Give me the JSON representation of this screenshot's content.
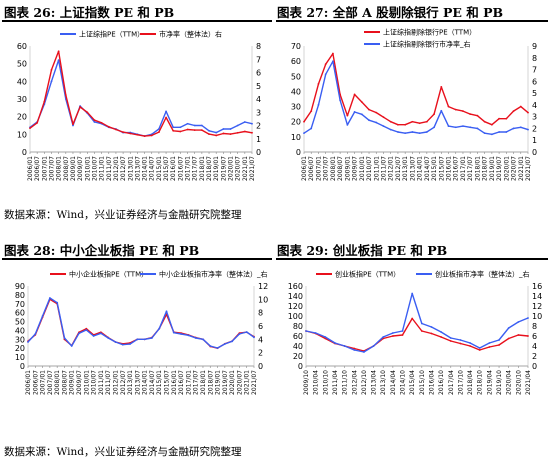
{
  "figures": [
    {
      "title": "图表 26:  上证指数 PE 和 PB"
    },
    {
      "title": "图表 27:  全部 A 股剔除银行 PE 和 PB"
    },
    {
      "title": "图表 28:  中小企业板指 PE 和 PB"
    },
    {
      "title": "图表 29:  创业板指 PE 和 PB"
    }
  ],
  "sources": [
    {
      "text": "数据来源：Wind，兴业证券经济与金融研究院整理"
    },
    {
      "text": "数据来源：Wind，兴业证券经济与金融研究院整理"
    }
  ],
  "colors": {
    "pe": "#e8101c",
    "pb": "#3a5ef2"
  },
  "chart_data": [
    {
      "type": "line",
      "categories": [
        "2006/01",
        "2006/07",
        "2007/01",
        "2007/07",
        "2008/01",
        "2008/07",
        "2009/01",
        "2009/07",
        "2010/01",
        "2010/07",
        "2011/01",
        "2011/07",
        "2012/01",
        "2012/07",
        "2013/01",
        "2013/07",
        "2014/01",
        "2014/07",
        "2015/01",
        "2015/07",
        "2016/01",
        "2016/07",
        "2017/01",
        "2017/07",
        "2018/01",
        "2018/07",
        "2019/01",
        "2019/07",
        "2020/01",
        "2020/07",
        "2021/01",
        "2021/07"
      ],
      "series": [
        {
          "name": "上证综指PE（TTM）",
          "axis": "left",
          "color": "#3a5ef2",
          "values": [
            14,
            17,
            27,
            40,
            52,
            30,
            15,
            26,
            22,
            17,
            16,
            14,
            13,
            11,
            11,
            10,
            9,
            10,
            13,
            23,
            14,
            14,
            16,
            15,
            15,
            12,
            11,
            13,
            13,
            15,
            17,
            16
          ]
        },
        {
          "name": "市净率（整体法）右",
          "axis": "right",
          "color": "#e8101c",
          "values": [
            1.8,
            2.2,
            3.8,
            6.2,
            7.6,
            4.3,
            2.1,
            3.4,
            3.0,
            2.4,
            2.2,
            1.9,
            1.7,
            1.5,
            1.4,
            1.3,
            1.2,
            1.25,
            1.5,
            2.6,
            1.6,
            1.55,
            1.7,
            1.65,
            1.65,
            1.35,
            1.25,
            1.4,
            1.35,
            1.45,
            1.55,
            1.45
          ]
        }
      ],
      "ylim_left": [
        0,
        60
      ],
      "yticks_left": [
        0,
        10,
        20,
        30,
        40,
        50,
        60
      ],
      "ylim_right": [
        0,
        8
      ],
      "yticks_right": [
        0,
        1,
        2,
        3,
        4,
        5,
        6,
        7,
        8
      ],
      "legend": "top-center",
      "grid": false
    },
    {
      "type": "line",
      "categories": [
        "2006/01",
        "2006/07",
        "2007/01",
        "2007/07",
        "2008/01",
        "2008/07",
        "2009/01",
        "2009/07",
        "2010/01",
        "2010/07",
        "2011/01",
        "2011/07",
        "2012/01",
        "2012/07",
        "2013/01",
        "2013/07",
        "2014/01",
        "2014/07",
        "2015/01",
        "2015/07",
        "2016/01",
        "2016/07",
        "2017/01",
        "2017/07",
        "2018/01",
        "2018/07",
        "2019/01",
        "2019/07",
        "2020/01",
        "2020/07",
        "2021/01",
        "2021/07"
      ],
      "series": [
        {
          "name": "上证综指剔除银行PE（TTM）",
          "axis": "left",
          "color": "#e8101c",
          "values": [
            20,
            27,
            45,
            58,
            65,
            38,
            24,
            38,
            33,
            28,
            26,
            23,
            20,
            18,
            18,
            20,
            19,
            20,
            25,
            43,
            30,
            28,
            27,
            25,
            24,
            20,
            18,
            22,
            22,
            27,
            30,
            26
          ]
        },
        {
          "name": "上证综指剔除银行市净率_右",
          "axis": "right",
          "color": "#3a5ef2",
          "values": [
            1.6,
            2.0,
            4.0,
            6.6,
            7.7,
            4.4,
            2.3,
            3.4,
            3.2,
            2.7,
            2.5,
            2.2,
            1.9,
            1.7,
            1.6,
            1.7,
            1.6,
            1.7,
            2.1,
            3.5,
            2.2,
            2.1,
            2.2,
            2.1,
            2.0,
            1.6,
            1.5,
            1.7,
            1.7,
            2.0,
            2.1,
            1.9
          ]
        }
      ],
      "ylim_left": [
        0,
        70
      ],
      "yticks_left": [
        0,
        10,
        20,
        30,
        40,
        50,
        60,
        70
      ],
      "ylim_right": [
        0,
        9
      ],
      "yticks_right": [
        0,
        1,
        2,
        3,
        4,
        5,
        6,
        7,
        8,
        9
      ],
      "legend": "top-center",
      "grid": false
    },
    {
      "type": "line",
      "categories": [
        "2006/01",
        "2006/07",
        "2007/01",
        "2007/07",
        "2008/01",
        "2008/07",
        "2009/01",
        "2009/07",
        "2010/01",
        "2010/07",
        "2011/01",
        "2011/07",
        "2012/01",
        "2012/07",
        "2013/01",
        "2013/07",
        "2014/01",
        "2014/07",
        "2015/01",
        "2015/07",
        "2016/01",
        "2016/07",
        "2017/01",
        "2017/07",
        "2018/01",
        "2018/07",
        "2019/01",
        "2019/07",
        "2020/01",
        "2020/07",
        "2021/01",
        "2021/07"
      ],
      "series": [
        {
          "name": "中小企业板指PE（TTM）",
          "axis": "left",
          "color": "#e8101c",
          "values": [
            28,
            35,
            55,
            75,
            70,
            30,
            23,
            38,
            42,
            35,
            38,
            32,
            27,
            25,
            26,
            30,
            30,
            32,
            42,
            58,
            38,
            37,
            35,
            32,
            30,
            22,
            20,
            25,
            28,
            37,
            38,
            33
          ]
        },
        {
          "name": "中小企业板指市净率（整体法）_右",
          "axis": "right",
          "color": "#3a5ef2",
          "values": [
            3.6,
            4.8,
            7.5,
            10.2,
            9.5,
            4.2,
            3.0,
            4.9,
            5.4,
            4.5,
            4.9,
            4.2,
            3.6,
            3.2,
            3.3,
            4.0,
            4.0,
            4.2,
            5.6,
            8.2,
            5.0,
            4.8,
            4.6,
            4.2,
            4.0,
            3.0,
            2.7,
            3.3,
            3.7,
            4.8,
            5.1,
            4.3
          ]
        }
      ],
      "ylim_left": [
        0,
        90
      ],
      "yticks_left": [
        0,
        10,
        20,
        30,
        40,
        50,
        60,
        70,
        80,
        90
      ],
      "ylim_right": [
        0,
        12
      ],
      "yticks_right": [
        0,
        2,
        4,
        6,
        8,
        10,
        12
      ],
      "legend": "top-center",
      "grid": false
    },
    {
      "type": "line",
      "categories": [
        "2009/10",
        "2010/04",
        "2010/10",
        "2011/04",
        "2011/10",
        "2012/04",
        "2012/10",
        "2013/04",
        "2013/10",
        "2014/04",
        "2014/10",
        "2015/04",
        "2015/10",
        "2016/04",
        "2016/10",
        "2017/04",
        "2017/10",
        "2018/04",
        "2018/10",
        "2019/04",
        "2019/10",
        "2020/04",
        "2020/10",
        "2021/04"
      ],
      "series": [
        {
          "name": "创业板指PE（TTM）",
          "axis": "left",
          "color": "#e8101c",
          "values": [
            70,
            65,
            55,
            45,
            40,
            35,
            30,
            40,
            55,
            60,
            62,
            95,
            70,
            65,
            58,
            50,
            45,
            40,
            32,
            38,
            42,
            55,
            62,
            60
          ]
        },
        {
          "name": "创业板指市净率（整体法）_右",
          "axis": "right",
          "color": "#3a5ef2",
          "values": [
            7.0,
            6.6,
            5.8,
            4.6,
            4.0,
            3.2,
            2.8,
            4.0,
            5.8,
            6.6,
            7.0,
            14.5,
            8.5,
            7.8,
            6.8,
            5.6,
            5.2,
            4.6,
            3.6,
            4.6,
            5.2,
            7.6,
            8.8,
            9.6
          ]
        }
      ],
      "ylim_left": [
        0,
        160
      ],
      "yticks_left": [
        0,
        20,
        40,
        60,
        80,
        100,
        120,
        140,
        160
      ],
      "ylim_right": [
        0,
        16
      ],
      "yticks_right": [
        0,
        2,
        4,
        6,
        8,
        10,
        12,
        14,
        16
      ],
      "legend": "top-center",
      "grid": false
    }
  ]
}
